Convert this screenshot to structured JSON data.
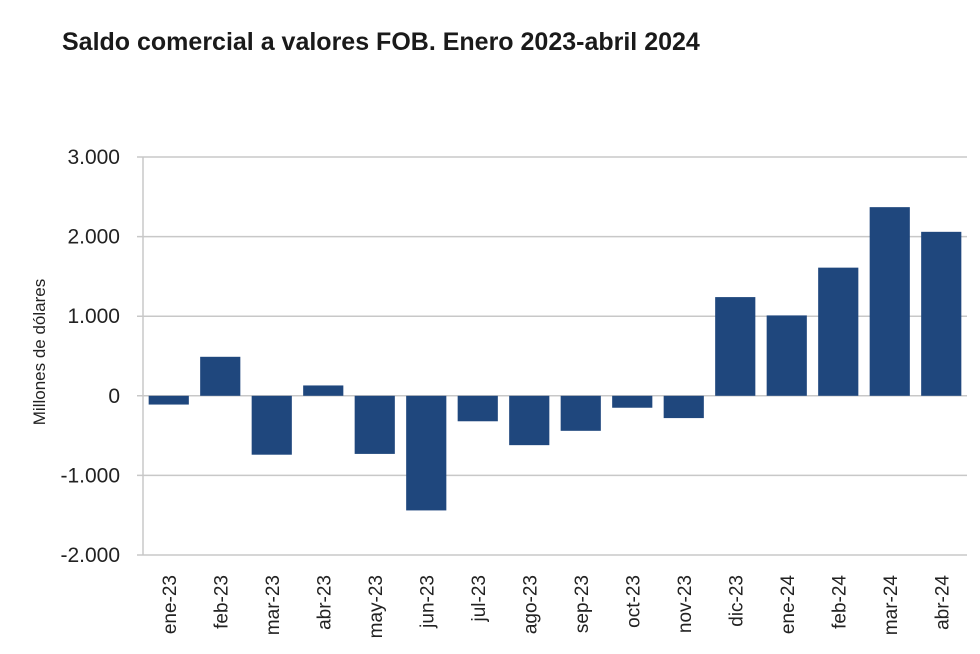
{
  "chart_data": {
    "type": "bar",
    "title": "Saldo comercial a valores FOB. Enero 2023-abril 2024",
    "xlabel": "",
    "ylabel": "Millones de dólares",
    "ylim": [
      -2000,
      3000
    ],
    "yticks": [
      3000,
      2000,
      1000,
      0,
      -1000,
      -2000
    ],
    "ytick_labels": [
      "3.000",
      "2.000",
      "1.000",
      "0",
      "-1.000",
      "-2.000"
    ],
    "categories": [
      "ene-23",
      "feb-23",
      "mar-23",
      "abr-23",
      "may-23",
      "jun-23",
      "jul-23",
      "ago-23",
      "sep-23",
      "oct-23",
      "nov-23",
      "dic-23",
      "ene-24",
      "feb-24",
      "mar-24",
      "abr-24"
    ],
    "values": [
      -110,
      490,
      -740,
      130,
      -730,
      -1440,
      -320,
      -620,
      -440,
      -150,
      -280,
      1240,
      1010,
      1610,
      2370,
      2060
    ],
    "grid": true,
    "legend": "none",
    "bar_color": "#1f477d",
    "grid_color": "#c8c8c8"
  }
}
